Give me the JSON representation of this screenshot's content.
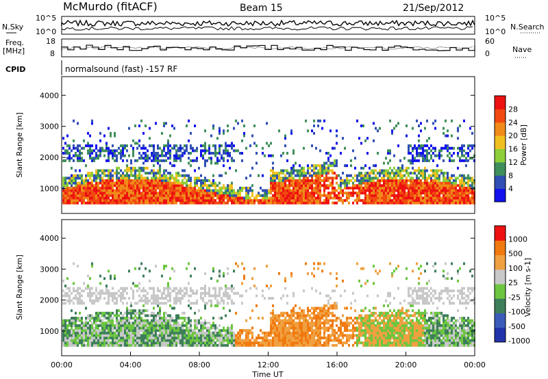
{
  "header": {
    "station": "McMurdo (fitACF)",
    "beam": "Beam 15",
    "date": "21/Sep/2012"
  },
  "noise_panel": {
    "left_label": "N.Sky",
    "right_label": "N.Search",
    "left_ticks": [
      "10^5",
      "10^0"
    ],
    "right_ticks": [
      "10^5",
      "10^0"
    ]
  },
  "freq_panel": {
    "left_label_line1": "Freq.",
    "left_label_line2": "[MHz]",
    "left_ticks": [
      "18",
      "8"
    ],
    "right_label": "Nave",
    "right_ticks": [
      "60",
      "0"
    ]
  },
  "cpid": {
    "label": "CPID",
    "value": "normalsound (fast) -157 RF"
  },
  "colors": {
    "power_scale": [
      "#1111ee",
      "#2f4fb4",
      "#3e8f5a",
      "#8ccf3a",
      "#f0c020",
      "#f08a1a",
      "#f04a10",
      "#ee1111"
    ],
    "velocity_scale": [
      "#2233aa",
      "#3a5bb8",
      "#3d7f5a",
      "#6cc640",
      "#c8c8c8",
      "#f0a040",
      "#f07a10",
      "#ee1111"
    ]
  },
  "chart_data": [
    {
      "type": "heatmap",
      "panel": "power",
      "ylabel": "Slant Range [km]",
      "yticks": [
        1000,
        2000,
        3000,
        4000
      ],
      "ylim": [
        200,
        4600
      ],
      "colorbar": {
        "label": "Power [dB]",
        "ticks": [
          "4",
          "8",
          "12",
          "16",
          "20",
          "24",
          "28"
        ],
        "range": [
          0,
          32
        ]
      },
      "bands": [
        {
          "y_range_km": [
            500,
            1300
          ],
          "x_range": [
            "00:00",
            "24:00"
          ],
          "level": "high"
        },
        {
          "y_range_km": [
            1800,
            2400
          ],
          "x_range": [
            "00:00",
            "10:00"
          ],
          "level": "low"
        },
        {
          "y_range_km": [
            1800,
            2400
          ],
          "x_range": [
            "20:00",
            "24:00"
          ],
          "level": "low"
        }
      ]
    },
    {
      "type": "heatmap",
      "panel": "velocity",
      "ylabel": "Slant Range [km]",
      "yticks": [
        1000,
        2000,
        3000,
        4000
      ],
      "ylim": [
        200,
        4600
      ],
      "xlabel": "Time UT",
      "xticks": [
        "00:00",
        "04:00",
        "08:00",
        "12:00",
        "16:00",
        "20:00",
        "00:00"
      ],
      "colorbar": {
        "label": "Velocity [m s-1]",
        "ticks": [
          "1000",
          "500",
          "100",
          "25",
          "-25",
          "-100",
          "-500",
          "-1000"
        ]
      }
    }
  ]
}
